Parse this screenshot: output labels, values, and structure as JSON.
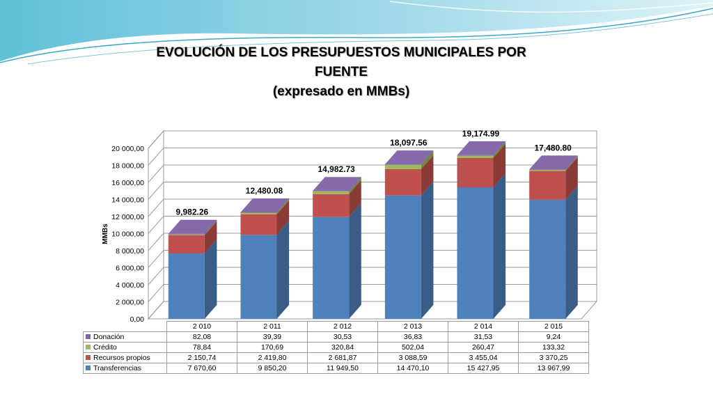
{
  "slide": {
    "title_line1": "EVOLUCIÓN DE LOS PRESUPUESTOS MUNICIPALES POR",
    "title_line2": "FUENTE",
    "title_line3": "(expresado en MMBs)"
  },
  "chart_data": {
    "type": "bar",
    "stacked": true,
    "three_d": true,
    "categories": [
      "2 010",
      "2 011",
      "2 012",
      "2 013",
      "2 014",
      "2 015"
    ],
    "series": [
      {
        "name": "Transferencias",
        "color": "#4F81BD",
        "values": [
          7670.6,
          9850.2,
          11949.5,
          14470.1,
          15427.95,
          13967.99
        ],
        "labels": [
          "7 670,60",
          "9 850,20",
          "11 949,50",
          "14 470,10",
          "15 427,95",
          "13 967,99"
        ]
      },
      {
        "name": "Recursos propios",
        "color": "#C0504D",
        "values": [
          2150.74,
          2419.8,
          2681.87,
          3088.59,
          3455.04,
          3370.25
        ],
        "labels": [
          "2 150,74",
          "2 419,80",
          "2 681,87",
          "3 088,59",
          "3 455,04",
          "3 370,25"
        ]
      },
      {
        "name": "Crédito",
        "color": "#9BBB59",
        "values": [
          78.84,
          170.69,
          320.84,
          502.04,
          260.47,
          133.32
        ],
        "labels": [
          "78,84",
          "170,69",
          "320,84",
          "502,04",
          "260,47",
          "133,32"
        ]
      },
      {
        "name": "Donación",
        "color": "#8064A2",
        "values": [
          82.08,
          39.39,
          30.53,
          36.83,
          31.53,
          9.24
        ],
        "labels": [
          "82,08",
          "39,39",
          "30,53",
          "36,83",
          "31,53",
          "9,24"
        ]
      }
    ],
    "totals": [
      "9,982.26",
      "12,480.08",
      "14,982.73",
      "18,097.56",
      "19,174.99",
      "17,480.80"
    ],
    "ylabel": "MMBs",
    "ylim": [
      0,
      20000
    ],
    "yticks": [
      "0,00",
      "2 000,00",
      "4 000,00",
      "6 000,00",
      "8 000,00",
      "10 000,00",
      "12 000,00",
      "14 000,00",
      "16 000,00",
      "18 000,00",
      "20 000,00"
    ],
    "grid": true,
    "legend": "data-table-below"
  },
  "table": {
    "rows": [
      {
        "name": "Donación",
        "color": "#8064A2",
        "cells": [
          "82,08",
          "39,39",
          "30,53",
          "36,83",
          "31,53",
          "9,24"
        ]
      },
      {
        "name": "Crédito",
        "color": "#9BBB59",
        "cells": [
          "78,84",
          "170,69",
          "320,84",
          "502,04",
          "260,47",
          "133,32"
        ]
      },
      {
        "name": "Recursos propios",
        "color": "#C0504D",
        "cells": [
          "2 150,74",
          "2 419,80",
          "2 681,87",
          "3 088,59",
          "3 455,04",
          "3 370,25"
        ]
      },
      {
        "name": "Transferencias",
        "color": "#4F81BD",
        "cells": [
          "7 670,60",
          "9 850,20",
          "11 949,50",
          "14 470,10",
          "15 427,95",
          "13 967,99"
        ]
      }
    ]
  }
}
